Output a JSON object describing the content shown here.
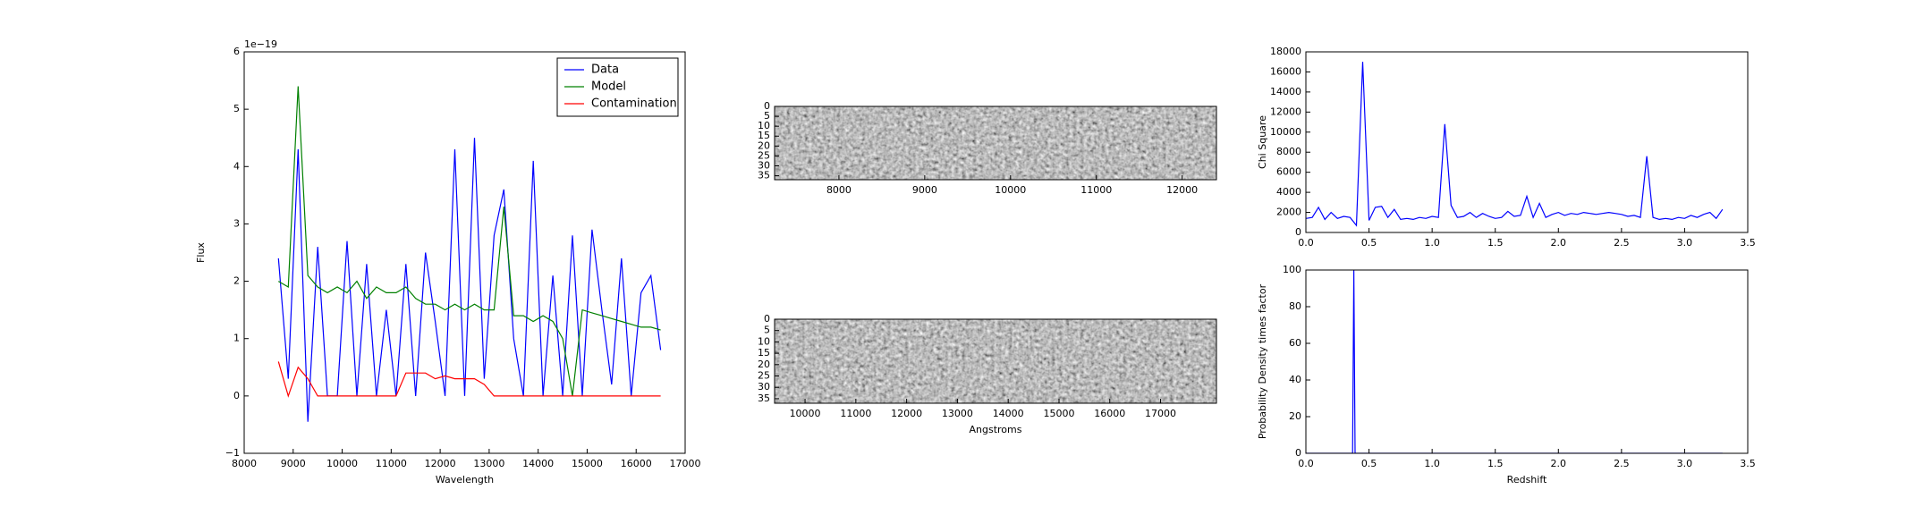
{
  "chart_data": [
    {
      "type": "line",
      "xlabel": "Wavelength",
      "ylabel": "Flux",
      "offset_text": "1e−19",
      "xlim": [
        8000,
        17000
      ],
      "xticks": [
        8000,
        9000,
        10000,
        11000,
        12000,
        13000,
        14000,
        15000,
        16000,
        17000
      ],
      "ylim": [
        -1,
        6
      ],
      "yticks": [
        {
          "value": -1,
          "label": "−1"
        },
        0,
        1,
        2,
        3,
        4,
        5,
        6
      ],
      "legend": "upper right",
      "x": [
        8700,
        8900,
        9100,
        9300,
        9500,
        9700,
        9900,
        10100,
        10300,
        10500,
        10700,
        10900,
        11100,
        11300,
        11500,
        11700,
        11900,
        12100,
        12300,
        12500,
        12700,
        12900,
        13100,
        13300,
        13500,
        13700,
        13900,
        14100,
        14300,
        14500,
        14700,
        14900,
        15100,
        15300,
        15500,
        15700,
        15900,
        16100,
        16300,
        16500
      ],
      "series": [
        {
          "name": "Data",
          "color": "#0000ff",
          "values": [
            2.4,
            0.3,
            4.3,
            -0.45,
            2.6,
            0,
            0,
            2.7,
            0,
            2.3,
            0,
            1.5,
            0,
            2.3,
            0,
            2.5,
            1.3,
            0,
            4.3,
            0,
            4.5,
            0.3,
            2.8,
            3.6,
            1.0,
            0,
            4.1,
            0,
            2.1,
            0,
            2.8,
            0,
            2.9,
            1.5,
            0.2,
            2.4,
            0,
            1.8,
            2.1,
            0.8
          ]
        },
        {
          "name": "Model",
          "color": "#008000",
          "values": [
            2.0,
            1.9,
            5.4,
            2.1,
            1.9,
            1.8,
            1.9,
            1.8,
            2.0,
            1.7,
            1.9,
            1.8,
            1.8,
            1.9,
            1.7,
            1.6,
            1.6,
            1.5,
            1.6,
            1.5,
            1.6,
            1.5,
            1.5,
            3.3,
            1.4,
            1.4,
            1.3,
            1.4,
            1.3,
            1.0,
            0,
            1.5,
            1.45,
            1.4,
            1.35,
            1.3,
            1.25,
            1.2,
            1.2,
            1.15
          ]
        },
        {
          "name": "Contamination",
          "color": "#ff0000",
          "values": [
            0.6,
            0,
            0.5,
            0.3,
            0,
            0,
            0,
            0,
            0,
            0,
            0,
            0,
            0,
            0.4,
            0.4,
            0.4,
            0.3,
            0.35,
            0.3,
            0.3,
            0.3,
            0.2,
            0,
            0,
            0,
            0,
            0,
            0,
            0,
            0,
            0,
            0,
            0,
            0,
            0,
            0,
            0,
            0,
            0,
            0
          ]
        }
      ]
    },
    {
      "type": "image",
      "xlim": [
        7250,
        12400
      ],
      "xticks": [
        8000,
        9000,
        10000,
        11000,
        12000
      ],
      "ylim": [
        37,
        0
      ],
      "yticks": [
        0,
        5,
        10,
        15,
        20,
        25,
        30,
        35
      ]
    },
    {
      "type": "image",
      "xlabel": "Angstroms",
      "xlim": [
        9400,
        18100
      ],
      "xticks": [
        10000,
        11000,
        12000,
        13000,
        14000,
        15000,
        16000,
        17000
      ],
      "ylim": [
        37,
        0
      ],
      "yticks": [
        0,
        5,
        10,
        15,
        20,
        25,
        30,
        35
      ]
    },
    {
      "type": "line",
      "ylabel": "Chi Square",
      "xlim": [
        0,
        3.5
      ],
      "xticks": [
        {
          "value": 0,
          "label": "0.0"
        },
        0.5,
        {
          "value": 1,
          "label": "1.0"
        },
        1.5,
        {
          "value": 2,
          "label": "2.0"
        },
        2.5,
        {
          "value": 3,
          "label": "3.0"
        },
        3.5
      ],
      "ylim": [
        0,
        18000
      ],
      "yticks": [
        0,
        2000,
        4000,
        6000,
        8000,
        10000,
        12000,
        14000,
        16000,
        18000
      ],
      "x": [
        0,
        0.05,
        0.1,
        0.15,
        0.2,
        0.25,
        0.3,
        0.35,
        0.4,
        0.45,
        0.5,
        0.55,
        0.6,
        0.65,
        0.7,
        0.75,
        0.8,
        0.85,
        0.9,
        0.95,
        1.0,
        1.05,
        1.1,
        1.15,
        1.2,
        1.25,
        1.3,
        1.35,
        1.4,
        1.45,
        1.5,
        1.55,
        1.6,
        1.65,
        1.7,
        1.75,
        1.8,
        1.85,
        1.9,
        1.95,
        2.0,
        2.05,
        2.1,
        2.15,
        2.2,
        2.25,
        2.3,
        2.35,
        2.4,
        2.45,
        2.5,
        2.55,
        2.6,
        2.65,
        2.7,
        2.75,
        2.8,
        2.85,
        2.9,
        2.95,
        3.0,
        3.05,
        3.1,
        3.15,
        3.2,
        3.25,
        3.3
      ],
      "series": [
        {
          "color": "#0000ff",
          "values": [
            1400,
            1500,
            2500,
            1300,
            2000,
            1400,
            1600,
            1500,
            700,
            17000,
            1200,
            2500,
            2600,
            1500,
            2300,
            1300,
            1400,
            1300,
            1500,
            1400,
            1600,
            1500,
            10800,
            2700,
            1500,
            1600,
            2000,
            1500,
            1900,
            1600,
            1400,
            1500,
            2100,
            1600,
            1700,
            3600,
            1500,
            2900,
            1500,
            1800,
            2000,
            1700,
            1900,
            1800,
            2000,
            1900,
            1800,
            1900,
            2000,
            1900,
            1800,
            1600,
            1700,
            1500,
            7600,
            1500,
            1300,
            1400,
            1300,
            1500,
            1400,
            1700,
            1500,
            1800,
            2000,
            1400,
            2300
          ]
        }
      ]
    },
    {
      "type": "line",
      "xlabel": "Redshift",
      "ylabel": "Probability Density times factor",
      "xlim": [
        0,
        3.5
      ],
      "xticks": [
        {
          "value": 0,
          "label": "0.0"
        },
        0.5,
        {
          "value": 1,
          "label": "1.0"
        },
        1.5,
        {
          "value": 2,
          "label": "2.0"
        },
        2.5,
        {
          "value": 3,
          "label": "3.0"
        },
        3.5
      ],
      "ylim": [
        0,
        100
      ],
      "yticks": [
        0,
        20,
        40,
        60,
        80,
        100
      ],
      "x": [
        0,
        0.37,
        0.38,
        0.39,
        3.3
      ],
      "series": [
        {
          "color": "#0000ff",
          "values": [
            0,
            0,
            100,
            0,
            0
          ]
        }
      ]
    }
  ]
}
